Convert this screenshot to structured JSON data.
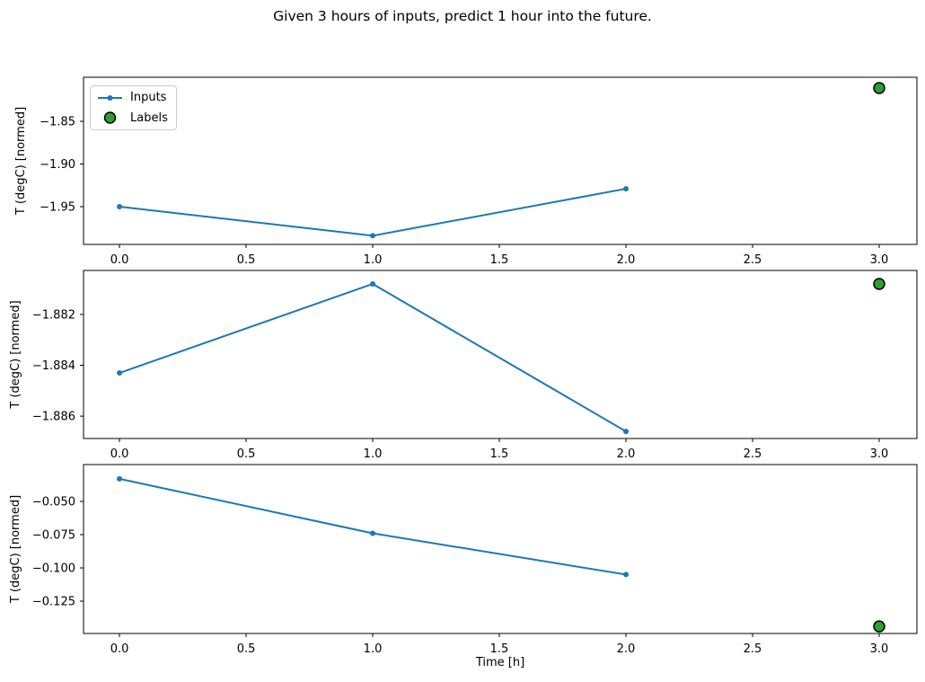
{
  "title": "Given 3 hours of inputs, predict 1 hour into the future.",
  "xlabel": "Time [h]",
  "ylabel": "T (degC) [normed]",
  "legend": {
    "inputs": "Inputs",
    "labels": "Labels"
  },
  "colors": {
    "inputs_line": "#1f77b4",
    "labels_fill": "#2ca02c",
    "labels_edge": "#000000",
    "axis": "#000000",
    "legend_border": "#cccccc"
  },
  "xticks": [
    0.0,
    0.5,
    1.0,
    1.5,
    2.0,
    2.5,
    3.0
  ],
  "xtick_labels": [
    "0.0",
    "0.5",
    "1.0",
    "1.5",
    "2.0",
    "2.5",
    "3.0"
  ],
  "xlim": [
    -0.142,
    3.149
  ],
  "chart_data": [
    {
      "type": "line",
      "subplot": 1,
      "x": [
        0,
        1,
        2
      ],
      "series": [
        {
          "name": "Inputs",
          "values": [
            -1.95,
            -1.984,
            -1.929
          ]
        }
      ],
      "labels_point": {
        "name": "Labels",
        "x": 3,
        "y": -1.811
      },
      "ylabel": "T (degC) [normed]",
      "yticks": [
        -1.85,
        -1.9,
        -1.95
      ],
      "ytick_labels": [
        "−1.85",
        "−1.90",
        "−1.95"
      ],
      "ylim": [
        -1.9942,
        -1.7984
      ],
      "grid": false,
      "legend_position": "upper left"
    },
    {
      "type": "line",
      "subplot": 2,
      "x": [
        0,
        1,
        2
      ],
      "series": [
        {
          "name": "Inputs",
          "values": [
            -1.8843,
            -1.8808,
            -1.8866
          ]
        }
      ],
      "labels_point": {
        "name": "Labels",
        "x": 3,
        "y": -1.8808
      },
      "ylabel": "T (degC) [normed]",
      "yticks": [
        -1.882,
        -1.884,
        -1.886
      ],
      "ytick_labels": [
        "−1.882",
        "−1.884",
        "−1.886"
      ],
      "ylim": [
        -1.88688,
        -1.88027
      ],
      "grid": false,
      "legend_position": "none"
    },
    {
      "type": "line",
      "subplot": 3,
      "x": [
        0,
        1,
        2
      ],
      "series": [
        {
          "name": "Inputs",
          "values": [
            -0.033,
            -0.074,
            -0.105
          ]
        }
      ],
      "labels_point": {
        "name": "Labels",
        "x": 3,
        "y": -0.144
      },
      "ylabel": "T (degC) [normed]",
      "yticks": [
        -0.05,
        -0.075,
        -0.1,
        -0.125
      ],
      "ytick_labels": [
        "−0.050",
        "−0.075",
        "−0.100",
        "−0.125"
      ],
      "ylim": [
        -0.1493,
        -0.0223
      ],
      "grid": false,
      "legend_position": "none"
    }
  ]
}
